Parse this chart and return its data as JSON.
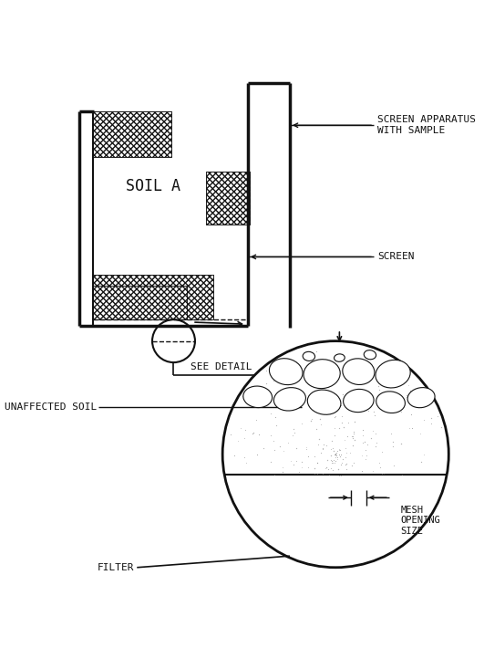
{
  "bg_color": "#ffffff",
  "line_color": "#111111",
  "figsize": [
    5.31,
    7.33
  ],
  "dpi": 100,
  "font_family": "monospace",
  "font_size": 8.0,
  "labels": {
    "screen_apparatus": "SCREEN APPARATUS\nWITH SAMPLE",
    "screen": "SCREEN",
    "soil_a": "SOIL A",
    "see_detail": "SEE DETAIL",
    "unaffected_soil": "UNAFFECTED SOIL",
    "mesh_opening": "MESH\nOPENING\nSIZE",
    "filter": "FILTER"
  }
}
